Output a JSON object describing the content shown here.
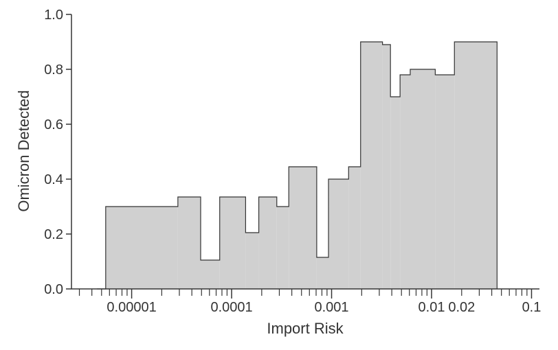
{
  "chart_data": {
    "type": "area",
    "step": true,
    "xlabel": "Import Risk",
    "ylabel": "Omicron Detected",
    "xscale": "log",
    "xlim": [
      2.5e-06,
      0.12
    ],
    "ylim": [
      0.0,
      1.0
    ],
    "grid": false,
    "x_tick_labels": [
      {
        "value": 1e-05,
        "label": "0.00001"
      },
      {
        "value": 0.0001,
        "label": "0.0001"
      },
      {
        "value": 0.001,
        "label": "0.001"
      },
      {
        "value": 0.01,
        "label": "0.01"
      },
      {
        "value": 0.02,
        "label": "0.02"
      },
      {
        "value": 0.1,
        "label": "0.1"
      }
    ],
    "y_tick_labels": [
      {
        "value": 0.0,
        "label": "0.0"
      },
      {
        "value": 0.2,
        "label": "0.2"
      },
      {
        "value": 0.4,
        "label": "0.4"
      },
      {
        "value": 0.6,
        "label": "0.6"
      },
      {
        "value": 0.8,
        "label": "0.8"
      },
      {
        "value": 1.0,
        "label": "1.0"
      }
    ],
    "steps": [
      {
        "x_start": 4.5e-06,
        "x_end": 5.5e-06,
        "y": 0.0
      },
      {
        "x_start": 5.5e-06,
        "x_end": 2.9e-05,
        "y": 0.3
      },
      {
        "x_start": 2.9e-05,
        "x_end": 4.9e-05,
        "y": 0.335
      },
      {
        "x_start": 4.9e-05,
        "x_end": 7.6e-05,
        "y": 0.105
      },
      {
        "x_start": 7.6e-05,
        "x_end": 0.000138,
        "y": 0.335
      },
      {
        "x_start": 0.000138,
        "x_end": 0.000187,
        "y": 0.205
      },
      {
        "x_start": 0.000187,
        "x_end": 0.000283,
        "y": 0.335
      },
      {
        "x_start": 0.000283,
        "x_end": 0.000373,
        "y": 0.3
      },
      {
        "x_start": 0.000373,
        "x_end": 0.00071,
        "y": 0.445
      },
      {
        "x_start": 0.00071,
        "x_end": 0.000931,
        "y": 0.115
      },
      {
        "x_start": 0.000931,
        "x_end": 0.00148,
        "y": 0.4
      },
      {
        "x_start": 0.00148,
        "x_end": 0.00195,
        "y": 0.445
      },
      {
        "x_start": 0.00195,
        "x_end": 0.00323,
        "y": 0.9
      },
      {
        "x_start": 0.00323,
        "x_end": 0.00388,
        "y": 0.89
      },
      {
        "x_start": 0.00388,
        "x_end": 0.00484,
        "y": 0.7
      },
      {
        "x_start": 0.00484,
        "x_end": 0.00612,
        "y": 0.78
      },
      {
        "x_start": 0.00612,
        "x_end": 0.01089,
        "y": 0.8
      },
      {
        "x_start": 0.01089,
        "x_end": 0.01693,
        "y": 0.78
      },
      {
        "x_start": 0.01693,
        "x_end": 0.0452,
        "y": 0.9
      }
    ],
    "colors": {
      "fill": "#d0d0d0",
      "stroke": "#333333",
      "axis": "#333333"
    }
  }
}
